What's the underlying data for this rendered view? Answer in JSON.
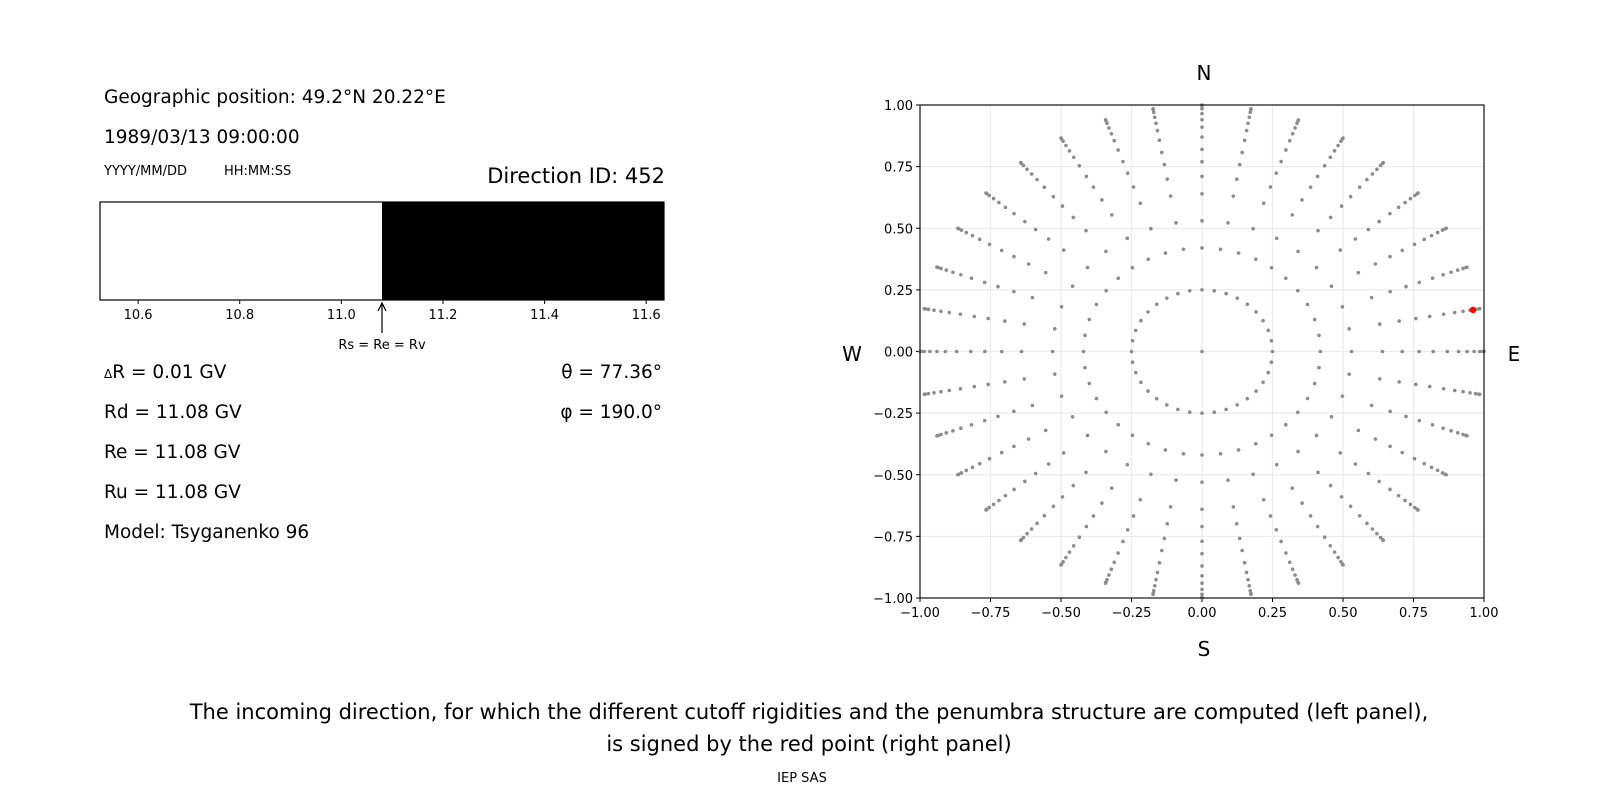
{
  "left_panel": {
    "geo_position": "Geographic position: 49.2°N 20.22°E",
    "datetime": "1989/03/13 09:00:00",
    "date_format_label": "YYYY/MM/DD",
    "time_format_label": "HH:MM:SS",
    "direction_id": "Direction ID: 452",
    "params": {
      "delta_r_prefix": "Δ",
      "delta_r": "R = 0.01 GV",
      "rd": "Rd = 11.08 GV",
      "re": "Re = 11.08 GV",
      "ru": "Ru = 11.08 GV",
      "model": "Model: Tsyganenko 96",
      "theta": "θ = 77.36°",
      "phi": "φ = 190.0°"
    }
  },
  "chart_data": [
    {
      "type": "bar",
      "title": "",
      "xlim": [
        10.525,
        11.635
      ],
      "xticks": [
        "10.6",
        "10.8",
        "11.0",
        "11.2",
        "11.4",
        "11.6"
      ],
      "xtick_values": [
        10.6,
        10.8,
        11.0,
        11.2,
        11.4,
        11.6
      ],
      "segments": [
        {
          "from": 10.525,
          "to": 11.08,
          "color": "#ffffff"
        },
        {
          "from": 11.08,
          "to": 11.635,
          "color": "#000000"
        }
      ],
      "annotation": {
        "x": 11.08,
        "text": "Rs = Re = Rv"
      }
    },
    {
      "type": "scatter",
      "xlim": [
        -1,
        1
      ],
      "ylim": [
        -1,
        1
      ],
      "grid": true,
      "ticks": [
        "−1.00",
        "−0.75",
        "−0.50",
        "−0.25",
        "0.00",
        "0.25",
        "0.50",
        "0.75",
        "1.00"
      ],
      "tick_values": [
        -1,
        -0.75,
        -0.5,
        -0.25,
        0,
        0.25,
        0.5,
        0.75,
        1
      ],
      "compass": {
        "north": "N",
        "south": "S",
        "west": "W",
        "east": "E"
      },
      "point_color": "#8c8c8c",
      "highlight_color": "#ff0000",
      "center_point": [
        0,
        0
      ],
      "rings": [
        {
          "radius": 0.25,
          "count": 36
        },
        {
          "radius": 0.42,
          "count": 40
        },
        {
          "radius": 0.53,
          "count": 36
        },
        {
          "radius": 0.64,
          "count": 36
        },
        {
          "radius": 0.71,
          "count": 36
        },
        {
          "radius": 0.77,
          "count": 36
        },
        {
          "radius": 0.82,
          "count": 36
        },
        {
          "radius": 0.87,
          "count": 36
        },
        {
          "radius": 0.91,
          "count": 36
        },
        {
          "radius": 0.94,
          "count": 36
        },
        {
          "radius": 0.965,
          "count": 36
        },
        {
          "radius": 0.985,
          "count": 36
        },
        {
          "radius": 0.996,
          "count": 36
        },
        {
          "radius": 1.0,
          "count": 36
        }
      ],
      "highlight_point": [
        0.961,
        0.169
      ]
    }
  ],
  "caption": {
    "line1": "The incoming direction, for which the different cutoff rigidities and the penumbra structure are computed (left panel),",
    "line2": "is signed by the red point (right panel)",
    "credit": "IEP SAS"
  }
}
